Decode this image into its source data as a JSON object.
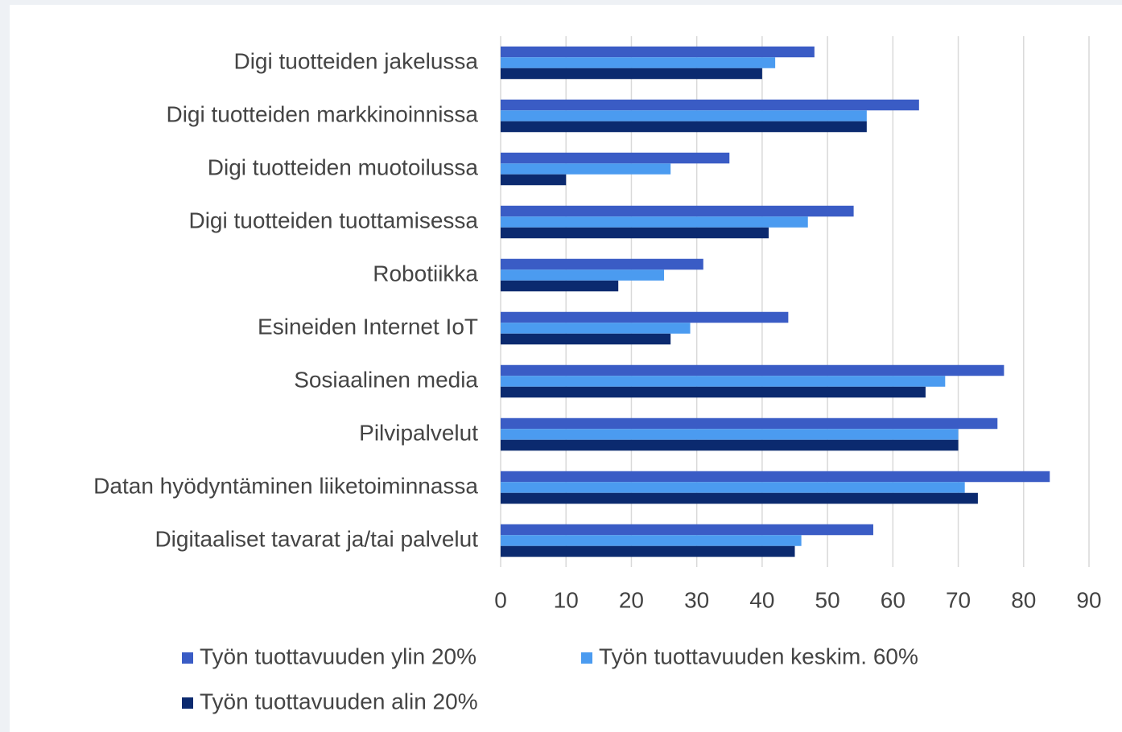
{
  "chart_data": {
    "type": "barh",
    "categories": [
      "Digi tuotteiden jakelussa",
      "Digi tuotteiden markkinoinnissa",
      "Digi tuotteiden muotoilussa",
      "Digi tuotteiden tuottamisessa",
      "Robotiikka",
      "Esineiden Internet IoT",
      "Sosiaalinen media",
      "Pilvipalvelut",
      "Datan hyödyntäminen liiketoiminnassa",
      "Digitaaliset tavarat ja/tai palvelut"
    ],
    "series": [
      {
        "name": "Työn tuottavuuden ylin 20%",
        "color": "#3a5cc5",
        "values": [
          48,
          64,
          35,
          54,
          31,
          44,
          77,
          76,
          84,
          57
        ]
      },
      {
        "name": "Työn tuottavuuden keskim. 60%",
        "color": "#4b9bf0",
        "values": [
          42,
          56,
          26,
          47,
          25,
          29,
          68,
          70,
          71,
          46
        ]
      },
      {
        "name": "Työn tuottavuuden alin 20%",
        "color": "#0b2a6f",
        "values": [
          40,
          56,
          10,
          41,
          18,
          26,
          65,
          70,
          73,
          45
        ]
      }
    ],
    "xlim": [
      0,
      90
    ],
    "xticks": [
      0,
      10,
      20,
      30,
      40,
      50,
      60,
      70,
      80,
      90
    ],
    "grid": true,
    "legend": "bottom"
  }
}
